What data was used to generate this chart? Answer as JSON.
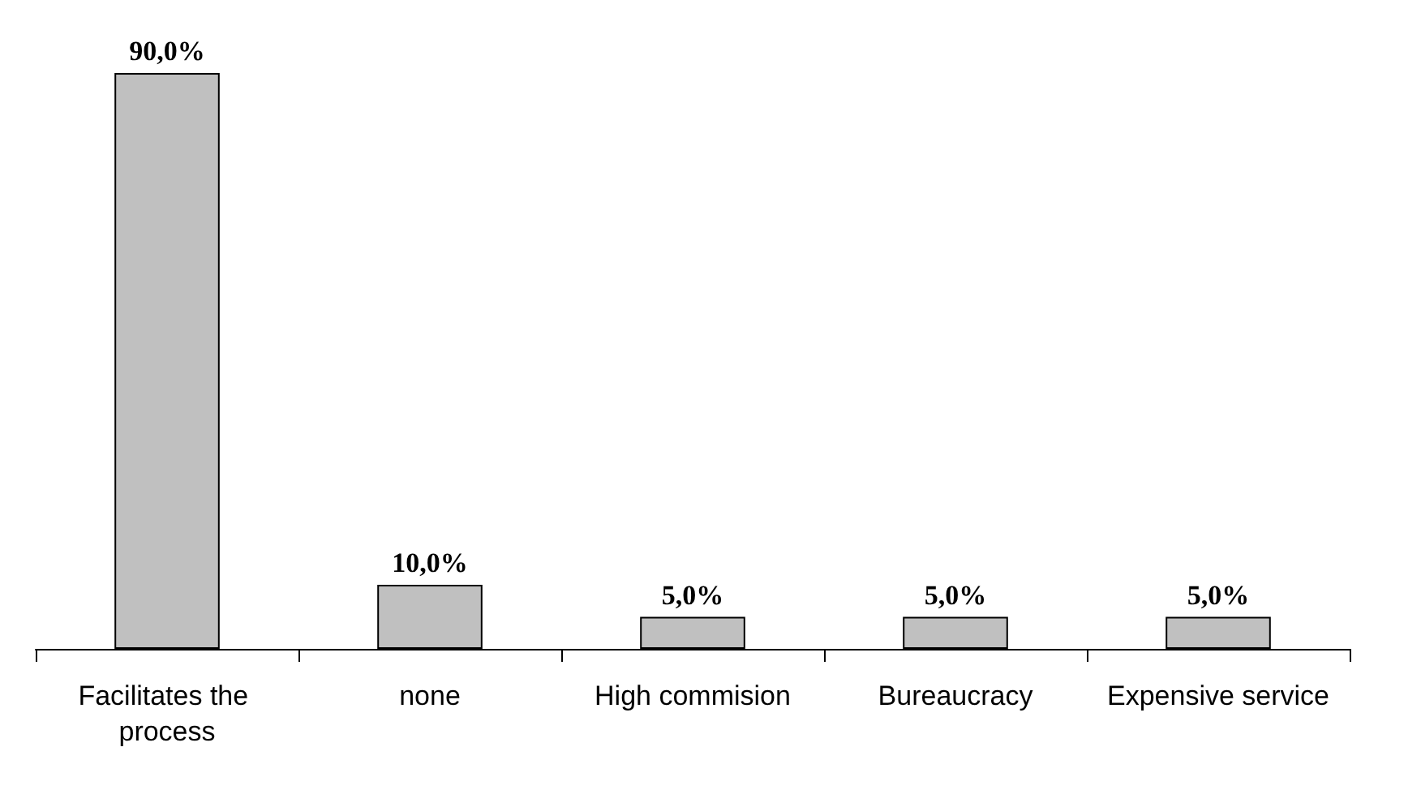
{
  "chart_data": {
    "type": "bar",
    "categories": [
      "Facilitates the process",
      "none",
      "High commision",
      "Bureaucracy",
      "Expensive service"
    ],
    "values": [
      90,
      10,
      5,
      5,
      5
    ],
    "value_labels": [
      "90,0%",
      "10,0%",
      "5,0%",
      "5,0%",
      "5,0%"
    ],
    "color": "#c0c0c0"
  }
}
